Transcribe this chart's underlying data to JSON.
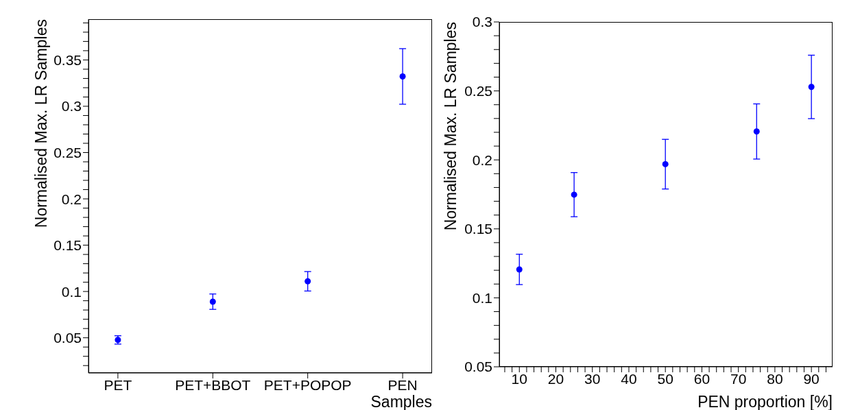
{
  "chart_data": [
    {
      "type": "scatter",
      "xlabel": "Samples",
      "ylabel": "Normalised Max. LR Samples",
      "categories": [
        "PET",
        "PET+BBOT",
        "PET+POPOP",
        "PEN"
      ],
      "series": [
        {
          "color": "#0000ff",
          "values": [
            0.0477,
            0.089,
            0.111,
            0.3322
          ],
          "errors": [
            0.0045,
            0.0083,
            0.0105,
            0.03
          ]
        }
      ],
      "ylim": [
        0.012,
        0.394
      ],
      "yticks": [
        {
          "value": 0.02,
          "label": null
        },
        {
          "value": 0.03,
          "label": null
        },
        {
          "value": 0.04,
          "label": null
        },
        0.05,
        {
          "value": 0.06,
          "label": null
        },
        {
          "value": 0.07,
          "label": null
        },
        {
          "value": 0.08,
          "label": null
        },
        {
          "value": 0.09,
          "label": null
        },
        0.1,
        {
          "value": 0.11,
          "label": null
        },
        {
          "value": 0.12,
          "label": null
        },
        {
          "value": 0.13,
          "label": null
        },
        {
          "value": 0.14,
          "label": null
        },
        0.15,
        {
          "value": 0.16,
          "label": null
        },
        {
          "value": 0.17,
          "label": null
        },
        {
          "value": 0.18,
          "label": null
        },
        {
          "value": 0.19,
          "label": null
        },
        0.2,
        {
          "value": 0.21,
          "label": null
        },
        {
          "value": 0.22,
          "label": null
        },
        {
          "value": 0.23,
          "label": null
        },
        {
          "value": 0.24,
          "label": null
        },
        0.25,
        {
          "value": 0.26,
          "label": null
        },
        {
          "value": 0.27,
          "label": null
        },
        {
          "value": 0.28,
          "label": null
        },
        {
          "value": 0.29,
          "label": null
        },
        0.3,
        {
          "value": 0.31,
          "label": null
        },
        {
          "value": 0.32,
          "label": null
        },
        {
          "value": 0.33,
          "label": null
        },
        {
          "value": 0.34,
          "label": null
        },
        0.35,
        {
          "value": 0.36,
          "label": null
        },
        {
          "value": 0.37,
          "label": null
        },
        {
          "value": 0.38,
          "label": null
        },
        {
          "value": 0.39,
          "label": null
        }
      ],
      "marker": "circle",
      "grid": false,
      "legend": false
    },
    {
      "type": "scatter",
      "xlabel": "PEN proportion [%]",
      "ylabel": "Normalised Max. LR Samples",
      "x": [
        10,
        25,
        50,
        75,
        90
      ],
      "series": [
        {
          "color": "#0000ff",
          "values": [
            0.1206,
            0.1748,
            0.1969,
            0.2206,
            0.2529
          ],
          "errors": [
            0.011,
            0.016,
            0.018,
            0.02,
            0.023
          ]
        }
      ],
      "xlim": [
        4.5,
        95.8
      ],
      "xticks": [
        {
          "value": 6,
          "label": null
        },
        {
          "value": 8,
          "label": null
        },
        10,
        {
          "value": 12,
          "label": null
        },
        {
          "value": 14,
          "label": null
        },
        {
          "value": 16,
          "label": null
        },
        {
          "value": 18,
          "label": null
        },
        20,
        {
          "value": 22,
          "label": null
        },
        {
          "value": 24,
          "label": null
        },
        {
          "value": 26,
          "label": null
        },
        {
          "value": 28,
          "label": null
        },
        30,
        {
          "value": 32,
          "label": null
        },
        {
          "value": 34,
          "label": null
        },
        {
          "value": 36,
          "label": null
        },
        {
          "value": 38,
          "label": null
        },
        40,
        {
          "value": 42,
          "label": null
        },
        {
          "value": 44,
          "label": null
        },
        {
          "value": 46,
          "label": null
        },
        {
          "value": 48,
          "label": null
        },
        50,
        {
          "value": 52,
          "label": null
        },
        {
          "value": 54,
          "label": null
        },
        {
          "value": 56,
          "label": null
        },
        {
          "value": 58,
          "label": null
        },
        60,
        {
          "value": 62,
          "label": null
        },
        {
          "value": 64,
          "label": null
        },
        {
          "value": 66,
          "label": null
        },
        {
          "value": 68,
          "label": null
        },
        70,
        {
          "value": 72,
          "label": null
        },
        {
          "value": 74,
          "label": null
        },
        {
          "value": 76,
          "label": null
        },
        {
          "value": 78,
          "label": null
        },
        80,
        {
          "value": 82,
          "label": null
        },
        {
          "value": 84,
          "label": null
        },
        {
          "value": 86,
          "label": null
        },
        {
          "value": 88,
          "label": null
        },
        90,
        {
          "value": 92,
          "label": null
        },
        {
          "value": 94,
          "label": null
        }
      ],
      "ylim": [
        0.05,
        0.3
      ],
      "yticks": [
        0.05,
        {
          "value": 0.06,
          "label": null
        },
        {
          "value": 0.07,
          "label": null
        },
        {
          "value": 0.08,
          "label": null
        },
        {
          "value": 0.09,
          "label": null
        },
        0.1,
        {
          "value": 0.11,
          "label": null
        },
        {
          "value": 0.12,
          "label": null
        },
        {
          "value": 0.13,
          "label": null
        },
        {
          "value": 0.14,
          "label": null
        },
        0.15,
        {
          "value": 0.16,
          "label": null
        },
        {
          "value": 0.17,
          "label": null
        },
        {
          "value": 0.18,
          "label": null
        },
        {
          "value": 0.19,
          "label": null
        },
        0.2,
        {
          "value": 0.21,
          "label": null
        },
        {
          "value": 0.22,
          "label": null
        },
        {
          "value": 0.23,
          "label": null
        },
        {
          "value": 0.24,
          "label": null
        },
        0.25,
        {
          "value": 0.26,
          "label": null
        },
        {
          "value": 0.27,
          "label": null
        },
        {
          "value": 0.28,
          "label": null
        },
        {
          "value": 0.29,
          "label": null
        },
        0.3
      ],
      "marker": "circle",
      "grid": false,
      "legend": false
    }
  ]
}
